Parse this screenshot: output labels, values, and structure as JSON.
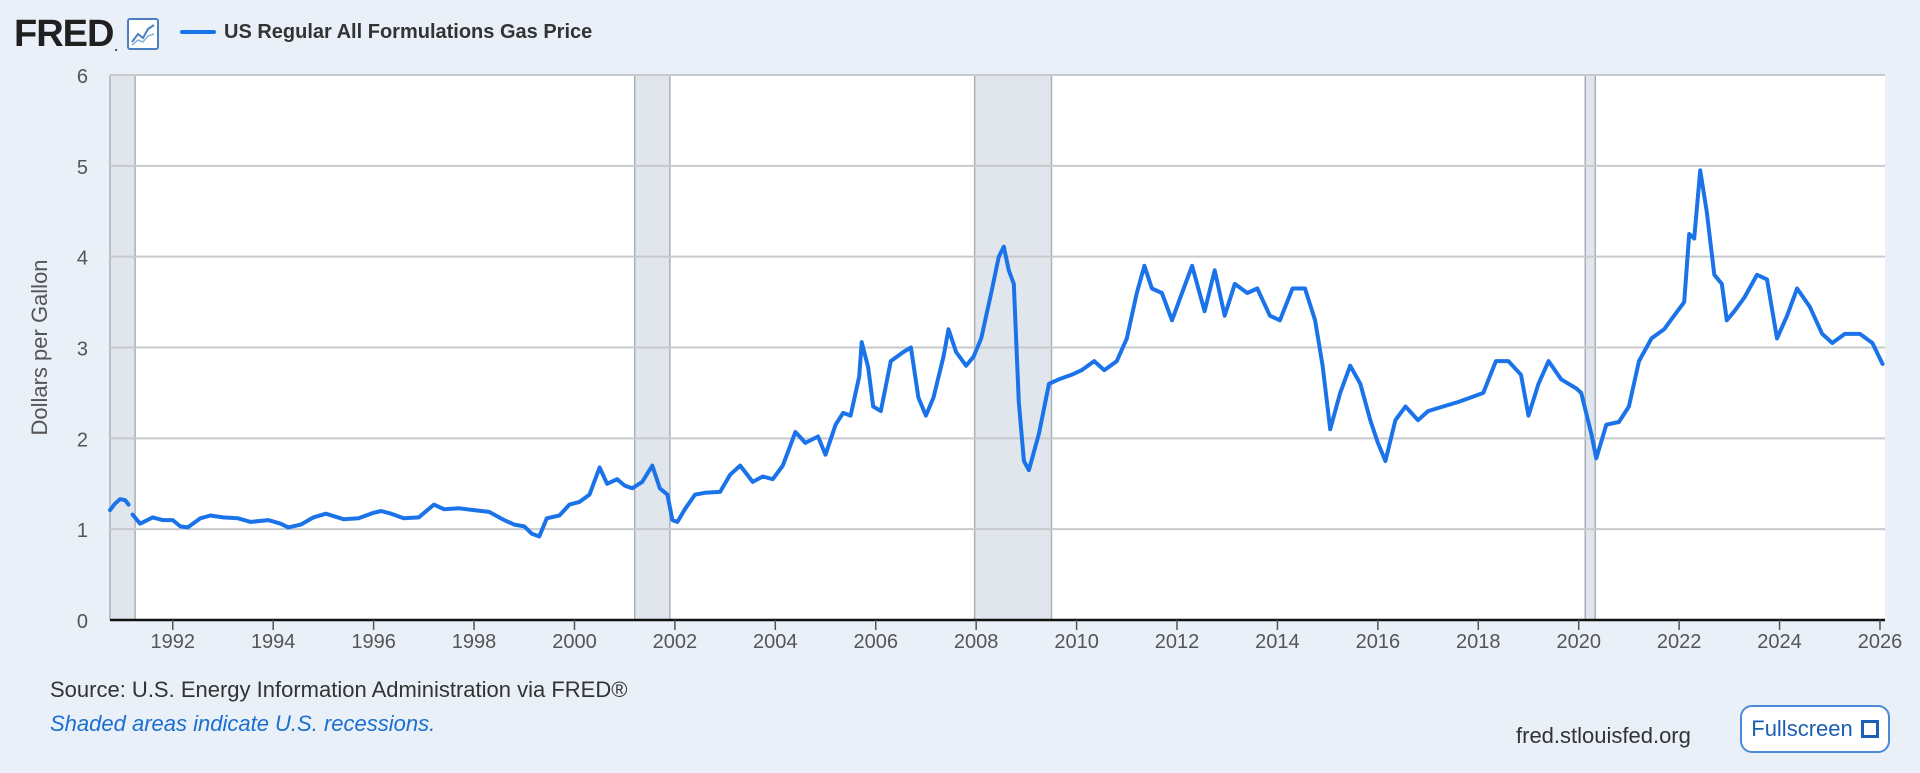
{
  "header": {
    "logo_text": "FRED",
    "logo_mark": ".",
    "legend_label": "US Regular All Formulations Gas Price"
  },
  "footer": {
    "source": "Source: U.S. Energy Information Administration via FRED®",
    "note": "Shaded areas indicate U.S. recessions.",
    "site": "fred.stlouisfed.org",
    "fullscreen_label": "Fullscreen"
  },
  "colors": {
    "series": "#1a73e8",
    "recession": "#e1e6ec",
    "background": "#e9f0f8",
    "plot_background": "#ffffff"
  },
  "chart_data": {
    "type": "line",
    "title": "",
    "xlabel": "",
    "ylabel": "Dollars per Gallon",
    "xlim": [
      1990.75,
      2026.1
    ],
    "ylim": [
      0,
      6
    ],
    "x_ticks": [
      1992,
      1994,
      1996,
      1998,
      2000,
      2002,
      2004,
      2006,
      2008,
      2010,
      2012,
      2014,
      2016,
      2018,
      2020,
      2022,
      2024,
      2026
    ],
    "y_ticks": [
      0,
      1,
      2,
      3,
      4,
      5,
      6
    ],
    "grid": true,
    "legend_position": "top-left",
    "recessions": [
      [
        1990.75,
        1991.25
      ],
      [
        2001.2,
        2001.9
      ],
      [
        2007.97,
        2009.5
      ],
      [
        2020.13,
        2020.33
      ]
    ],
    "series": [
      {
        "name": "US Regular All Formulations Gas Price",
        "color": "#1a73e8",
        "points": [
          [
            1990.75,
            1.21
          ],
          [
            1990.85,
            1.28
          ],
          [
            1990.95,
            1.33
          ],
          [
            1991.05,
            1.32
          ],
          [
            1991.12,
            1.27
          ],
          [
            1991.2,
            1.16
          ],
          [
            1991.35,
            1.06
          ],
          [
            1991.6,
            1.13
          ],
          [
            1991.8,
            1.1
          ],
          [
            1992.0,
            1.1
          ],
          [
            1992.15,
            1.03
          ],
          [
            1992.3,
            1.02
          ],
          [
            1992.55,
            1.12
          ],
          [
            1992.75,
            1.15
          ],
          [
            1993.0,
            1.13
          ],
          [
            1993.3,
            1.12
          ],
          [
            1993.55,
            1.08
          ],
          [
            1993.9,
            1.1
          ],
          [
            1994.15,
            1.06
          ],
          [
            1994.3,
            1.02
          ],
          [
            1994.55,
            1.05
          ],
          [
            1994.8,
            1.13
          ],
          [
            1995.05,
            1.17
          ],
          [
            1995.4,
            1.11
          ],
          [
            1995.7,
            1.12
          ],
          [
            1996.0,
            1.18
          ],
          [
            1996.15,
            1.2
          ],
          [
            1996.35,
            1.17
          ],
          [
            1996.6,
            1.12
          ],
          [
            1996.9,
            1.13
          ],
          [
            1997.2,
            1.27
          ],
          [
            1997.4,
            1.22
          ],
          [
            1997.7,
            1.23
          ],
          [
            1998.0,
            1.21
          ],
          [
            1998.3,
            1.19
          ],
          [
            1998.6,
            1.1
          ],
          [
            1998.8,
            1.05
          ],
          [
            1999.0,
            1.03
          ],
          [
            1999.15,
            0.95
          ],
          [
            1999.3,
            0.92
          ],
          [
            1999.45,
            1.12
          ],
          [
            1999.7,
            1.15
          ],
          [
            1999.9,
            1.27
          ],
          [
            2000.1,
            1.3
          ],
          [
            2000.3,
            1.38
          ],
          [
            2000.5,
            1.68
          ],
          [
            2000.65,
            1.5
          ],
          [
            2000.85,
            1.55
          ],
          [
            2001.0,
            1.48
          ],
          [
            2001.15,
            1.45
          ],
          [
            2001.35,
            1.52
          ],
          [
            2001.55,
            1.7
          ],
          [
            2001.7,
            1.45
          ],
          [
            2001.85,
            1.38
          ],
          [
            2001.95,
            1.1
          ],
          [
            2002.05,
            1.08
          ],
          [
            2002.2,
            1.22
          ],
          [
            2002.4,
            1.38
          ],
          [
            2002.6,
            1.4
          ],
          [
            2002.9,
            1.41
          ],
          [
            2003.1,
            1.6
          ],
          [
            2003.3,
            1.7
          ],
          [
            2003.55,
            1.52
          ],
          [
            2003.75,
            1.58
          ],
          [
            2003.95,
            1.55
          ],
          [
            2004.15,
            1.7
          ],
          [
            2004.4,
            2.07
          ],
          [
            2004.6,
            1.95
          ],
          [
            2004.85,
            2.02
          ],
          [
            2005.0,
            1.82
          ],
          [
            2005.2,
            2.15
          ],
          [
            2005.35,
            2.28
          ],
          [
            2005.5,
            2.25
          ],
          [
            2005.67,
            2.68
          ],
          [
            2005.72,
            3.06
          ],
          [
            2005.85,
            2.78
          ],
          [
            2005.95,
            2.35
          ],
          [
            2006.1,
            2.3
          ],
          [
            2006.3,
            2.85
          ],
          [
            2006.55,
            2.95
          ],
          [
            2006.7,
            3.0
          ],
          [
            2006.85,
            2.45
          ],
          [
            2007.0,
            2.25
          ],
          [
            2007.15,
            2.45
          ],
          [
            2007.35,
            2.9
          ],
          [
            2007.45,
            3.2
          ],
          [
            2007.6,
            2.95
          ],
          [
            2007.8,
            2.8
          ],
          [
            2007.95,
            2.9
          ],
          [
            2008.1,
            3.1
          ],
          [
            2008.3,
            3.6
          ],
          [
            2008.45,
            4.0
          ],
          [
            2008.55,
            4.11
          ],
          [
            2008.65,
            3.85
          ],
          [
            2008.75,
            3.7
          ],
          [
            2008.85,
            2.4
          ],
          [
            2008.95,
            1.75
          ],
          [
            2009.05,
            1.65
          ],
          [
            2009.25,
            2.05
          ],
          [
            2009.45,
            2.6
          ],
          [
            2009.65,
            2.65
          ],
          [
            2009.9,
            2.7
          ],
          [
            2010.1,
            2.75
          ],
          [
            2010.35,
            2.85
          ],
          [
            2010.55,
            2.75
          ],
          [
            2010.8,
            2.85
          ],
          [
            2011.0,
            3.1
          ],
          [
            2011.2,
            3.6
          ],
          [
            2011.35,
            3.9
          ],
          [
            2011.5,
            3.65
          ],
          [
            2011.7,
            3.6
          ],
          [
            2011.9,
            3.3
          ],
          [
            2012.1,
            3.6
          ],
          [
            2012.3,
            3.9
          ],
          [
            2012.55,
            3.4
          ],
          [
            2012.75,
            3.85
          ],
          [
            2012.95,
            3.35
          ],
          [
            2013.15,
            3.7
          ],
          [
            2013.4,
            3.6
          ],
          [
            2013.6,
            3.65
          ],
          [
            2013.85,
            3.35
          ],
          [
            2014.05,
            3.3
          ],
          [
            2014.3,
            3.65
          ],
          [
            2014.55,
            3.65
          ],
          [
            2014.75,
            3.3
          ],
          [
            2014.9,
            2.8
          ],
          [
            2015.05,
            2.1
          ],
          [
            2015.25,
            2.5
          ],
          [
            2015.45,
            2.8
          ],
          [
            2015.65,
            2.6
          ],
          [
            2015.85,
            2.2
          ],
          [
            2016.0,
            1.95
          ],
          [
            2016.15,
            1.75
          ],
          [
            2016.35,
            2.2
          ],
          [
            2016.55,
            2.35
          ],
          [
            2016.8,
            2.2
          ],
          [
            2017.0,
            2.3
          ],
          [
            2017.3,
            2.35
          ],
          [
            2017.6,
            2.4
          ],
          [
            2017.85,
            2.45
          ],
          [
            2018.1,
            2.5
          ],
          [
            2018.35,
            2.85
          ],
          [
            2018.6,
            2.85
          ],
          [
            2018.85,
            2.7
          ],
          [
            2019.0,
            2.25
          ],
          [
            2019.2,
            2.6
          ],
          [
            2019.4,
            2.85
          ],
          [
            2019.65,
            2.65
          ],
          [
            2019.95,
            2.55
          ],
          [
            2020.05,
            2.5
          ],
          [
            2020.25,
            2.05
          ],
          [
            2020.35,
            1.78
          ],
          [
            2020.55,
            2.15
          ],
          [
            2020.8,
            2.18
          ],
          [
            2021.0,
            2.35
          ],
          [
            2021.2,
            2.85
          ],
          [
            2021.45,
            3.1
          ],
          [
            2021.7,
            3.2
          ],
          [
            2021.9,
            3.35
          ],
          [
            2022.1,
            3.5
          ],
          [
            2022.2,
            4.25
          ],
          [
            2022.3,
            4.2
          ],
          [
            2022.42,
            4.95
          ],
          [
            2022.55,
            4.5
          ],
          [
            2022.7,
            3.8
          ],
          [
            2022.85,
            3.7
          ],
          [
            2022.95,
            3.3
          ],
          [
            2023.1,
            3.4
          ],
          [
            2023.3,
            3.55
          ],
          [
            2023.55,
            3.8
          ],
          [
            2023.75,
            3.75
          ],
          [
            2023.95,
            3.1
          ],
          [
            2024.15,
            3.35
          ],
          [
            2024.35,
            3.65
          ],
          [
            2024.6,
            3.45
          ],
          [
            2024.85,
            3.15
          ],
          [
            2025.05,
            3.05
          ],
          [
            2025.3,
            3.15
          ],
          [
            2025.6,
            3.15
          ],
          [
            2025.85,
            3.05
          ],
          [
            2026.05,
            2.82
          ]
        ]
      }
    ]
  }
}
